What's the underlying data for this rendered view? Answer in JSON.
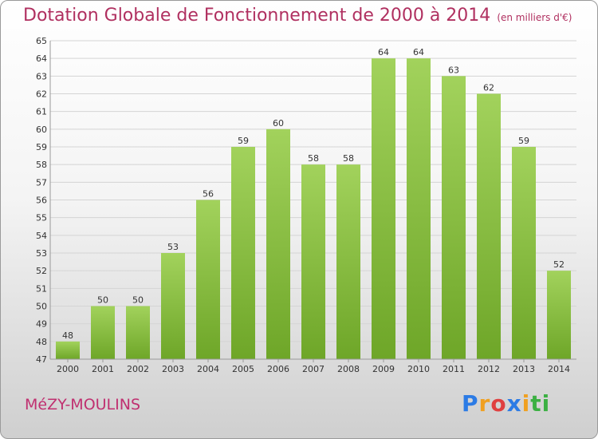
{
  "header": {
    "title": "Dotation Globale de Fonctionnement de 2000 à 2014",
    "unit": "(en milliers d'€)"
  },
  "footer": {
    "city": "MéZY-MOULINS",
    "logo": "Proxiti",
    "logo_colors": [
      "#2c7be5",
      "#f0a020",
      "#e04040",
      "#2c7be5",
      "#f0a020",
      "#3cb043",
      "#3cb043"
    ]
  },
  "colors": {
    "bar_light": "#a2d25c",
    "bar_dark": "#6ea628",
    "title": "#b03060",
    "grid": "#d4d4d4"
  },
  "chart_data": {
    "type": "bar",
    "title": "Dotation Globale de Fonctionnement de 2000 à 2014",
    "categories": [
      "2000",
      "2001",
      "2002",
      "2003",
      "2004",
      "2005",
      "2006",
      "2007",
      "2008",
      "2009",
      "2010",
      "2011",
      "2012",
      "2013",
      "2014"
    ],
    "values": [
      48,
      50,
      50,
      53,
      56,
      59,
      60,
      58,
      58,
      64,
      64,
      63,
      62,
      59,
      52
    ],
    "ylim": [
      47,
      65
    ],
    "yticks": [
      47,
      48,
      49,
      50,
      51,
      52,
      53,
      54,
      55,
      56,
      57,
      58,
      59,
      60,
      61,
      62,
      63,
      64,
      65
    ],
    "grid": true
  }
}
